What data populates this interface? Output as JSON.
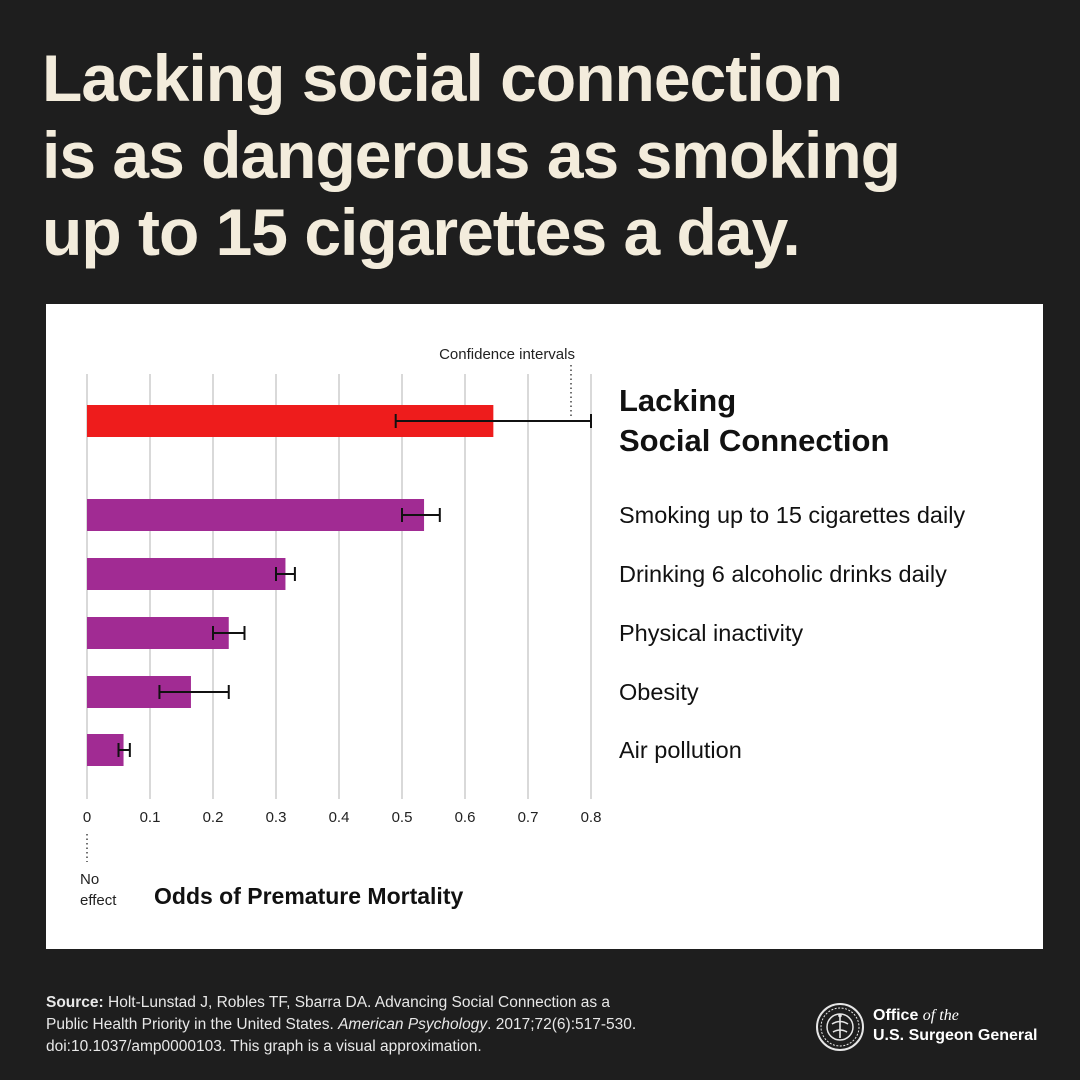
{
  "headline": {
    "line1": "Lacking social connection",
    "line2": "is as dangerous as smoking",
    "line3": "up to 15 cigarettes a day."
  },
  "chart_data": {
    "type": "bar",
    "orientation": "horizontal",
    "categories": [
      "Lacking Social Connection",
      "Smoking up to 15 cigarettes daily",
      "Drinking 6 alcoholic drinks daily",
      "Physical inactivity",
      "Obesity",
      "Air pollution"
    ],
    "category_label_lines": [
      [
        "Lacking",
        "Social Connection"
      ],
      [
        "Smoking up to 15 cigarettes daily"
      ],
      [
        "Drinking 6 alcoholic drinks daily"
      ],
      [
        "Physical inactivity"
      ],
      [
        "Obesity"
      ],
      [
        "Air pollution"
      ]
    ],
    "values": [
      0.645,
      0.535,
      0.315,
      0.225,
      0.165,
      0.058
    ],
    "ci_low": [
      0.49,
      0.5,
      0.3,
      0.2,
      0.115,
      0.05
    ],
    "ci_high": [
      0.8,
      0.56,
      0.33,
      0.25,
      0.225,
      0.068
    ],
    "colors": [
      "#ee1c1c",
      "#a12b93",
      "#a12b93",
      "#a12b93",
      "#a12b93",
      "#a12b93"
    ],
    "xlim": [
      0,
      0.8
    ],
    "xticks": [
      "0",
      "0.1",
      "0.2",
      "0.3",
      "0.4",
      "0.5",
      "0.6",
      "0.7",
      "0.8"
    ],
    "xlabel": "Odds of Premature Mortality",
    "grid": "vertical",
    "annotations": {
      "ci": "Confidence intervals",
      "no_effect_line1": "No",
      "no_effect_line2": "effect"
    }
  },
  "footer": {
    "source_label": "Source:",
    "source_line1": "Holt-Lunstad J, Robles TF, Sbarra DA. Advancing Social Connection as a",
    "source_line2a": "Public Health Priority in the United States.",
    "source_journal": "American Psychology",
    "source_line2b": ". 2017;72(6):517-530.",
    "source_line3": "doi:10.1037/amp0000103. This graph is a visual approximation."
  },
  "logo": {
    "office": "Office",
    "of_the": "of the",
    "name": "U.S. Surgeon General",
    "icon": "surgeon-general-seal-icon"
  }
}
